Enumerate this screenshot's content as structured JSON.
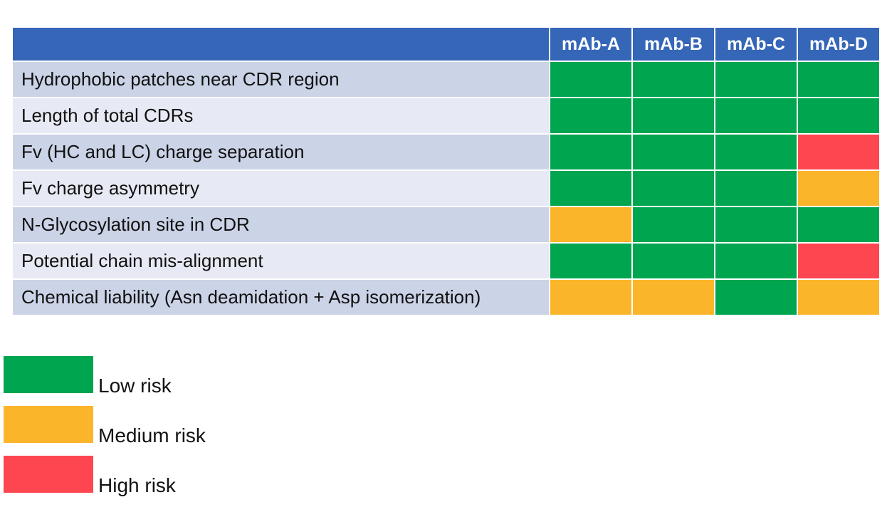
{
  "chart_data": {
    "type": "heatmap",
    "columns": [
      "mAb-A",
      "mAb-B",
      "mAb-C",
      "mAb-D"
    ],
    "rows": [
      {
        "label": "Hydrophobic patches near CDR region",
        "values": [
          "low",
          "low",
          "low",
          "low"
        ]
      },
      {
        "label": "Length of total CDRs",
        "values": [
          "low",
          "low",
          "low",
          "low"
        ]
      },
      {
        "label": "Fv (HC and LC) charge separation",
        "values": [
          "low",
          "low",
          "low",
          "high"
        ]
      },
      {
        "label": "Fv charge asymmetry",
        "values": [
          "low",
          "low",
          "low",
          "medium"
        ]
      },
      {
        "label": "N-Glycosylation site in CDR",
        "values": [
          "medium",
          "low",
          "low",
          "low"
        ]
      },
      {
        "label": "Potential chain mis-alignment",
        "values": [
          "low",
          "low",
          "low",
          "high"
        ]
      },
      {
        "label": "Chemical liability (Asn deamidation + Asp isomerization)",
        "values": [
          "medium",
          "medium",
          "low",
          "medium"
        ]
      }
    ],
    "legend": [
      {
        "key": "low",
        "label": "Low risk",
        "color": "#00a54f"
      },
      {
        "key": "medium",
        "label": "Medium risk",
        "color": "#fbb52b"
      },
      {
        "key": "high",
        "label": "High risk",
        "color": "#fd4650"
      }
    ],
    "legend_position": "bottom-left",
    "header_color": "#3566b8"
  }
}
